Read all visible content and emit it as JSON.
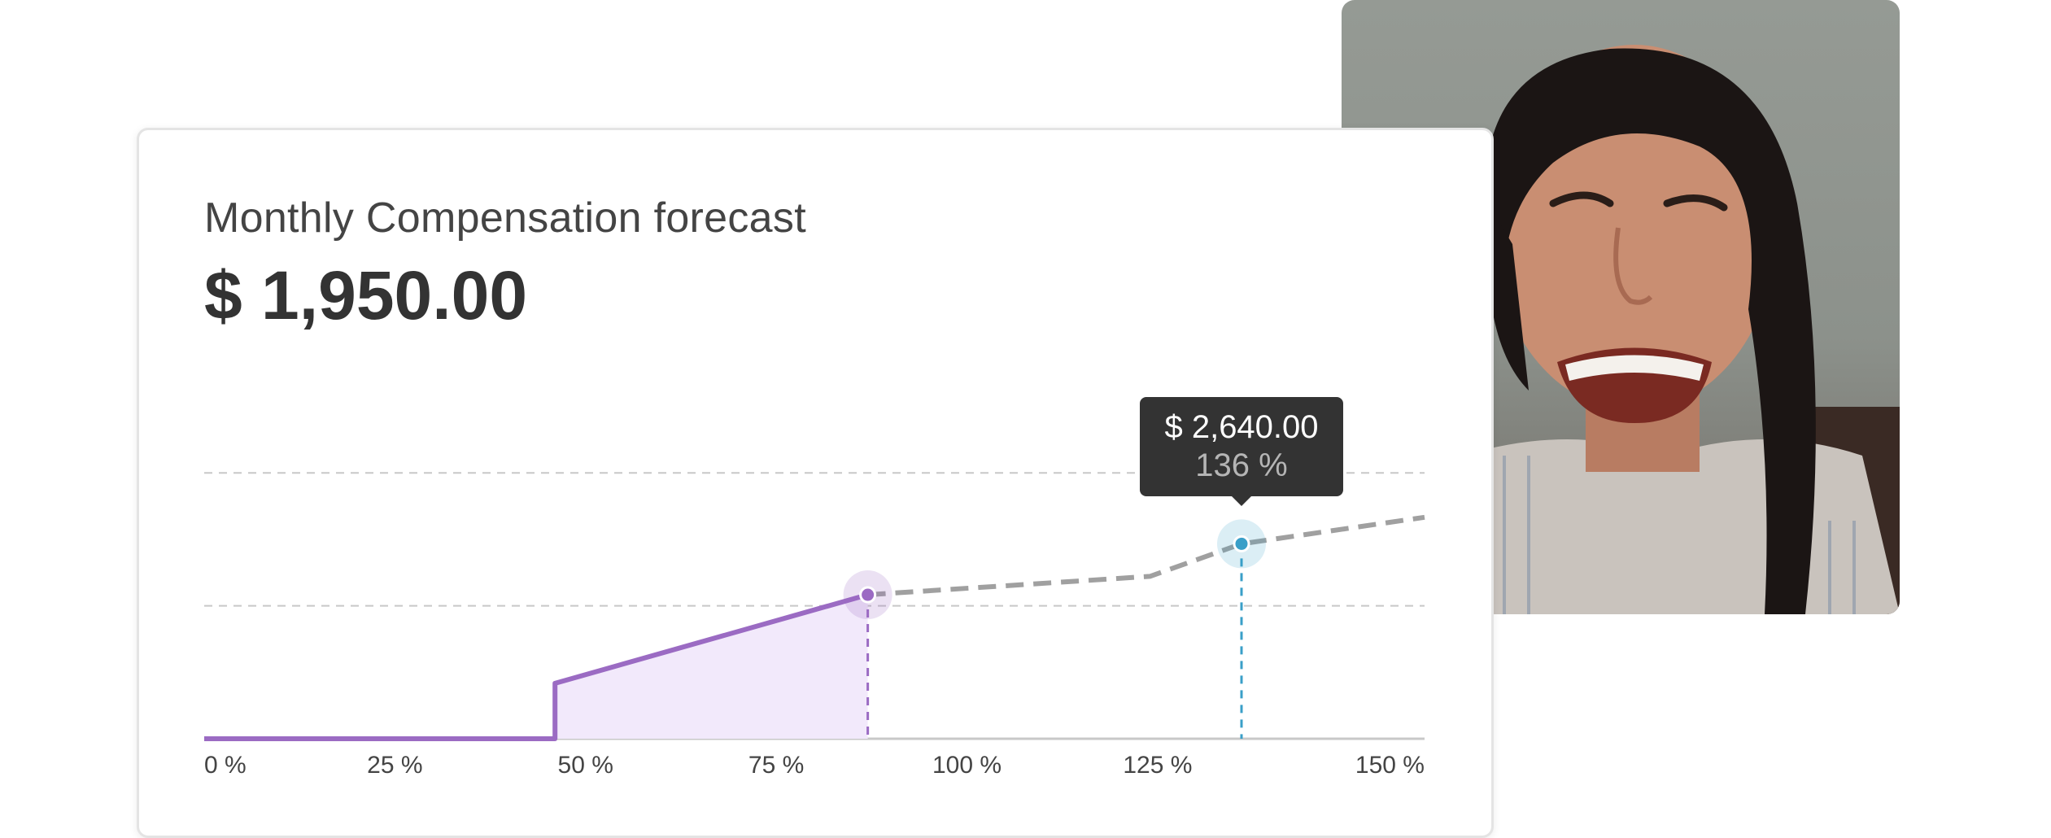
{
  "card": {
    "title": "Monthly Compensation forecast",
    "amount": "$ 1,950.00"
  },
  "tooltip": {
    "amount": "$ 2,640.00",
    "percent": "136 %"
  },
  "colors": {
    "accent": "#9b6bc3",
    "accent_fill": "#f2e9fb",
    "projection": "#a0a0a0",
    "highlight": "#3a9fc8",
    "gridline": "#c8c8c8",
    "axis": "#c8c8c8"
  },
  "chart_data": {
    "type": "line",
    "x_ticks": [
      "0 %",
      "25 %",
      "50 %",
      "75 %",
      "100 %",
      "125 %",
      "150 %"
    ],
    "xlim": [
      0,
      160
    ],
    "ylim": [
      0,
      4000
    ],
    "grid": true,
    "gridlines_y": [
      1800,
      3600
    ],
    "series": [
      {
        "style": "solid-filled",
        "points": [
          [
            0,
            0
          ],
          [
            46,
            0
          ],
          [
            46,
            750
          ],
          [
            87,
            1950
          ]
        ]
      },
      {
        "style": "dashed",
        "points": [
          [
            87,
            1950
          ],
          [
            124,
            2200
          ],
          [
            136,
            2640
          ],
          [
            160,
            3000
          ]
        ]
      }
    ],
    "markers": [
      {
        "x": 87,
        "y": 1950,
        "kind": "current"
      },
      {
        "x": 136,
        "y": 2640,
        "kind": "highlight"
      }
    ]
  }
}
